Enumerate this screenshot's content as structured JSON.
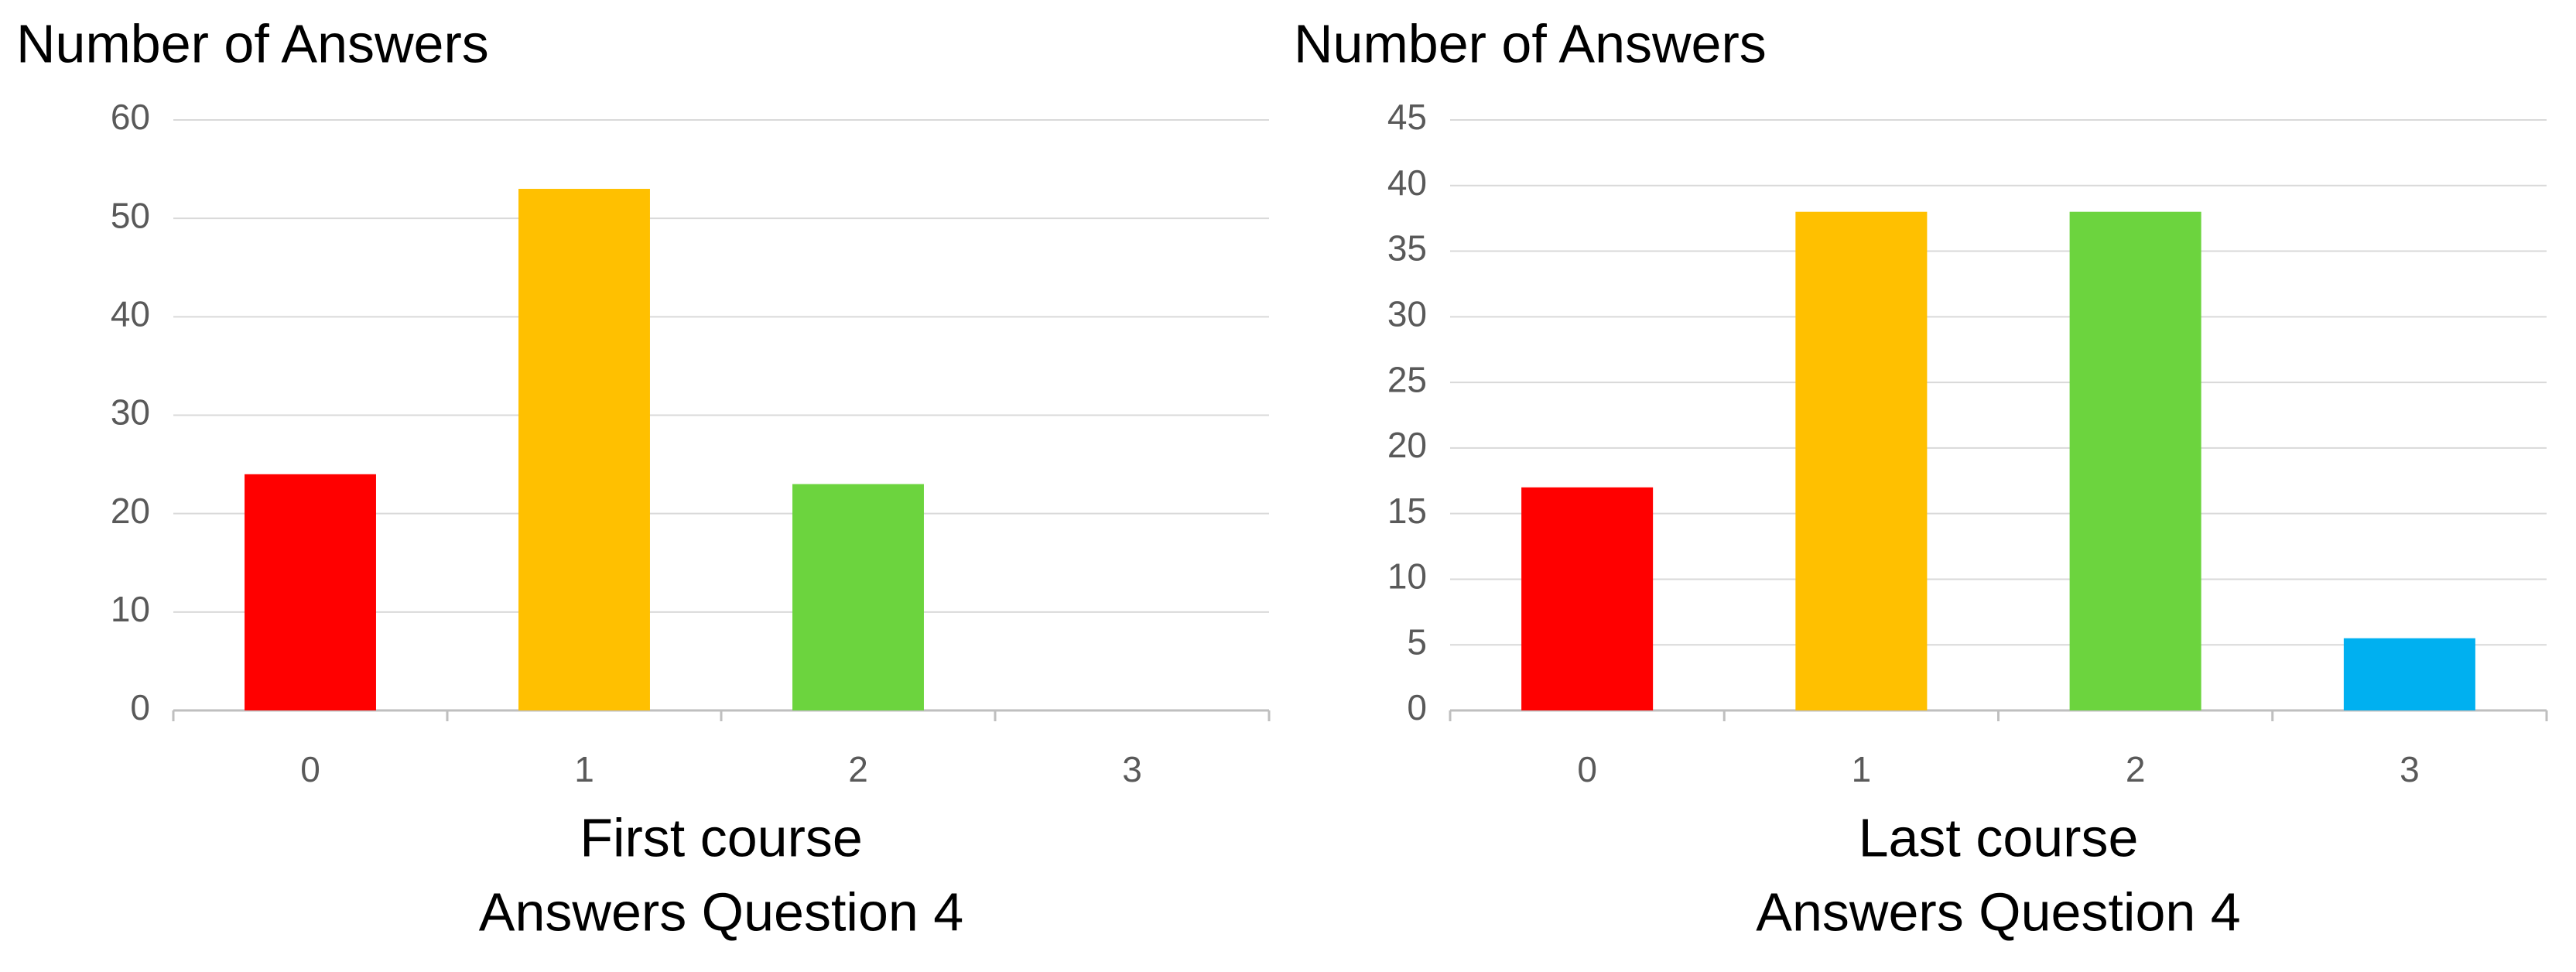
{
  "chart_data": [
    {
      "type": "bar",
      "y_label": "Number of Answers",
      "x_label": "First course",
      "x_label_2": "Answers Question 4",
      "categories": [
        "0",
        "1",
        "2",
        "3"
      ],
      "values": [
        24,
        53,
        23,
        0
      ],
      "colors": [
        "#ff0000",
        "#ffc000",
        "#6cd43e",
        "#00b0f0"
      ],
      "ylim": [
        0,
        60
      ],
      "yticks": [
        0,
        10,
        20,
        30,
        40,
        50,
        60
      ],
      "grid": true
    },
    {
      "type": "bar",
      "y_label": "Number of Answers",
      "x_label": "Last course",
      "x_label_2": "Answers Question 4",
      "categories": [
        "0",
        "1",
        "2",
        "3"
      ],
      "values": [
        17,
        38,
        38,
        5.5
      ],
      "colors": [
        "#ff0000",
        "#ffc000",
        "#6cd43e",
        "#00b0f0"
      ],
      "ylim": [
        0,
        45
      ],
      "yticks": [
        0,
        5,
        10,
        15,
        20,
        25,
        30,
        35,
        40,
        45
      ],
      "grid": true
    }
  ]
}
